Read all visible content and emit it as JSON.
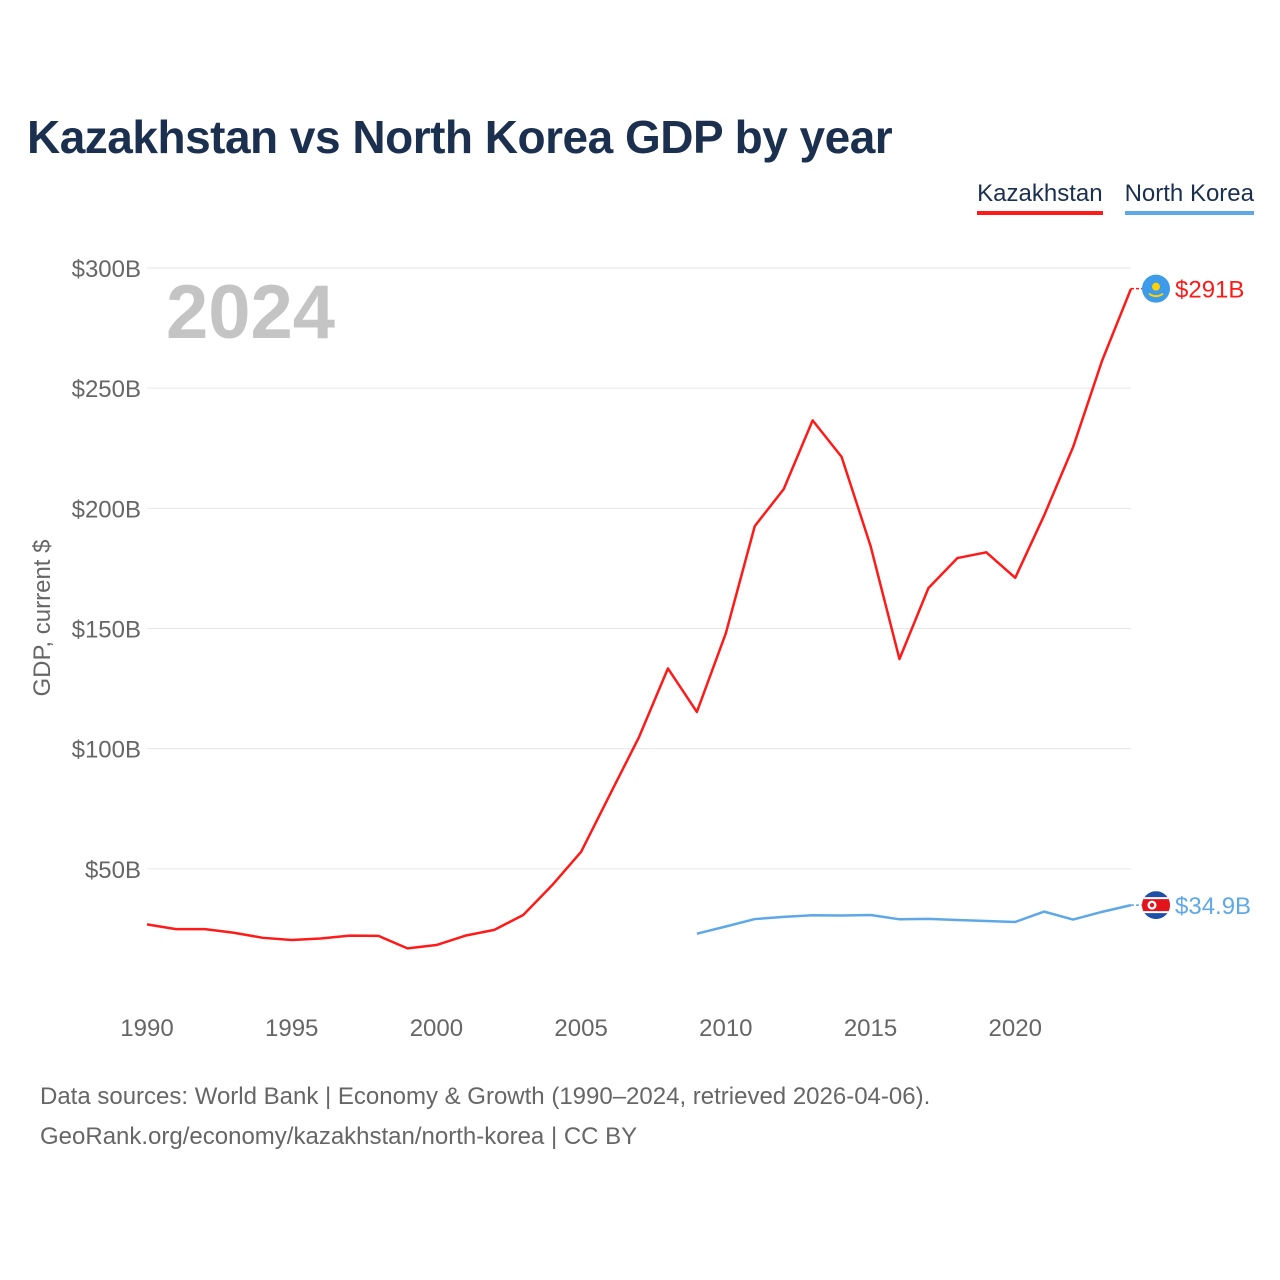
{
  "title": "Kazakhstan vs North Korea GDP by year",
  "year_label": "2024",
  "footer": {
    "line1": "Data sources: World Bank | Economy & Growth (1990–2024, retrieved 2026-04-06).",
    "line2": "GeoRank.org/economy/kazakhstan/north-korea | CC BY"
  },
  "chart_data": {
    "type": "line",
    "title": "Kazakhstan vs North Korea GDP by year",
    "ylabel": "GDP, current $",
    "xlabel": "",
    "xlim": [
      1990,
      2024
    ],
    "ylim": [
      0,
      300
    ],
    "x_ticks": [
      1990,
      1995,
      2000,
      2005,
      2010,
      2015,
      2020
    ],
    "y_ticks": [
      50,
      100,
      150,
      200,
      250,
      300
    ],
    "y_tick_labels": [
      "$50B",
      "$100B",
      "$150B",
      "$200B",
      "$250B",
      "$300B"
    ],
    "grid": true,
    "legend_position": "top-right",
    "series": [
      {
        "name": "Kazakhstan",
        "color": "#ff1a1a",
        "end_label": "$291B",
        "flag": "kazakhstan-flag",
        "x": [
          1990,
          1991,
          1992,
          1993,
          1994,
          1995,
          1996,
          1997,
          1998,
          1999,
          2000,
          2001,
          2002,
          2003,
          2004,
          2005,
          2006,
          2007,
          2008,
          2009,
          2010,
          2011,
          2012,
          2013,
          2014,
          2015,
          2016,
          2017,
          2018,
          2019,
          2020,
          2021,
          2022,
          2023,
          2024
        ],
        "values": [
          26.9,
          24.9,
          24.9,
          23.4,
          21.3,
          20.4,
          21.0,
          22.2,
          22.1,
          16.9,
          18.3,
          22.2,
          24.6,
          30.8,
          43.2,
          57.1,
          81.0,
          104.8,
          133.4,
          115.3,
          148.0,
          192.6,
          208.0,
          236.6,
          221.4,
          184.4,
          137.3,
          166.8,
          179.3,
          181.7,
          171.1,
          197.1,
          225.5,
          261.4,
          291.4
        ]
      },
      {
        "name": "North Korea",
        "color": "#5fa8e8",
        "end_label": "$34.9B",
        "flag": "north-korea-flag",
        "x": [
          2009,
          2010,
          2011,
          2012,
          2013,
          2014,
          2015,
          2016,
          2017,
          2018,
          2019,
          2020,
          2021,
          2022,
          2023,
          2024
        ],
        "values": [
          23.0,
          26.0,
          29.1,
          30.0,
          30.7,
          30.6,
          30.8,
          29.0,
          29.2,
          28.7,
          28.3,
          27.9,
          32.2,
          28.9,
          32.1,
          34.9
        ]
      }
    ]
  }
}
